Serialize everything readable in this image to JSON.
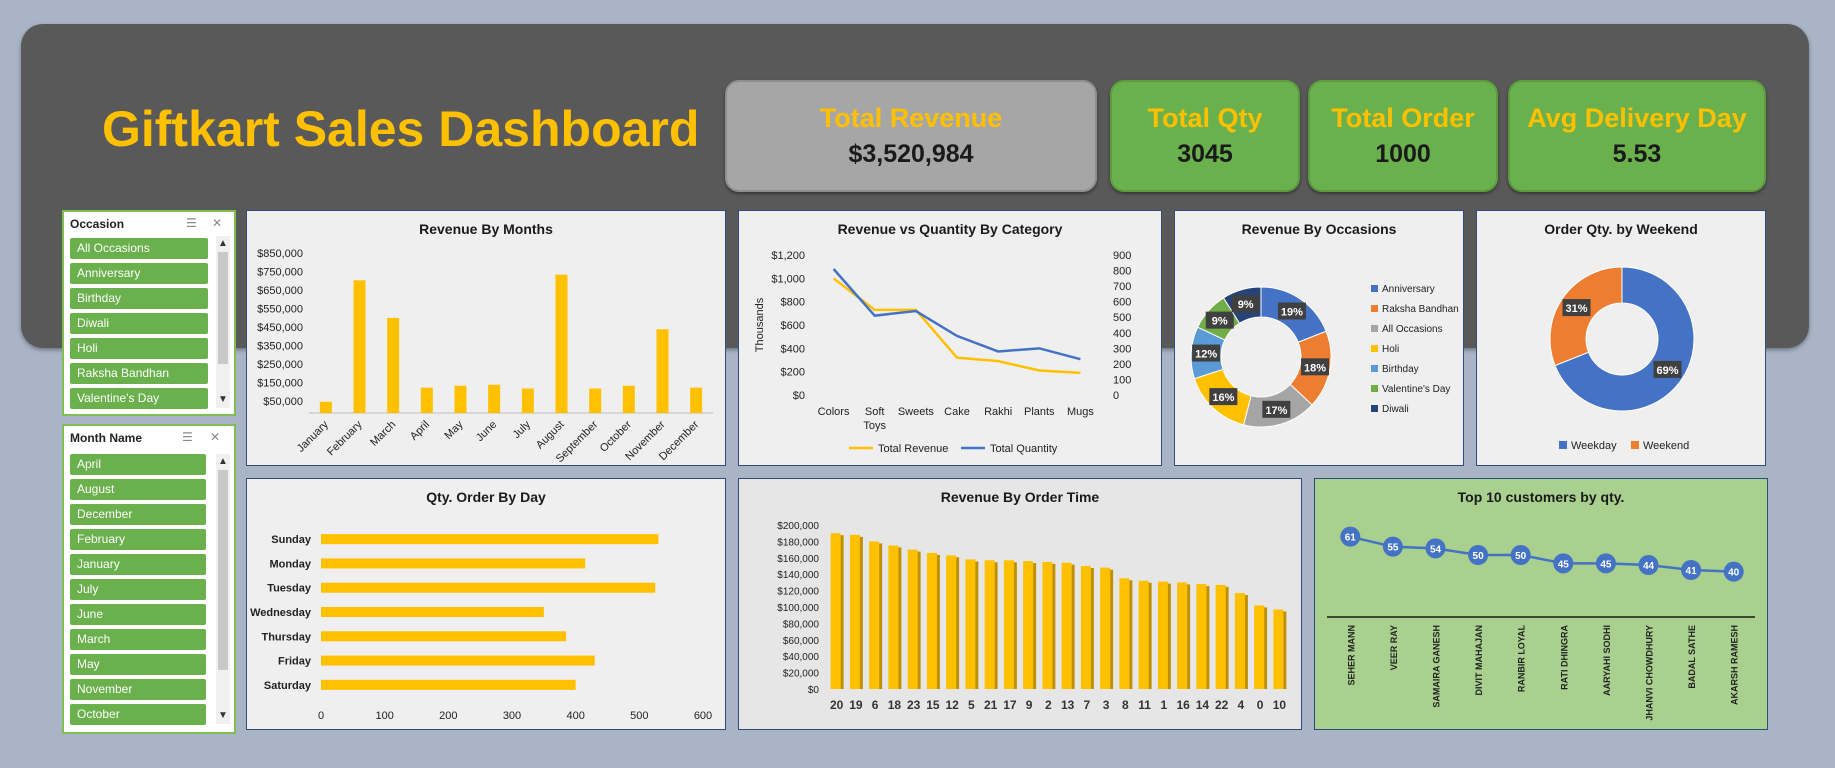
{
  "dashboard": {
    "title": "Giftkart Sales Dashboard",
    "kpis": [
      {
        "label": "Total Revenue",
        "value": "$3,520,984"
      },
      {
        "label": "Total Qty",
        "value": "3045"
      },
      {
        "label": "Total Order",
        "value": "1000"
      },
      {
        "label": "Avg Delivery Day",
        "value": "5.53"
      }
    ],
    "colors": {
      "accent": "#ffc000",
      "kpi_green": "#6ab04c",
      "header": "#595959",
      "blue": "#4472c4",
      "orange": "#ed7d31"
    }
  },
  "slicers": {
    "occasion": {
      "header": "Occasion",
      "items": [
        "All Occasions",
        "Anniversary",
        "Birthday",
        "Diwali",
        "Holi",
        "Raksha Bandhan",
        "Valentine's Day"
      ]
    },
    "month": {
      "header": "Month Name",
      "items": [
        "April",
        "August",
        "December",
        "February",
        "January",
        "July",
        "June",
        "March",
        "May",
        "November",
        "October"
      ]
    }
  },
  "chart_data": [
    {
      "id": "revenue-by-months",
      "type": "bar",
      "title": "Revenue By Months",
      "categories": [
        "January",
        "February",
        "March",
        "April",
        "May",
        "June",
        "July",
        "August",
        "September",
        "October",
        "November",
        "December"
      ],
      "values": [
        60000,
        705000,
        505000,
        135000,
        145000,
        150000,
        130000,
        735000,
        130000,
        145000,
        445000,
        135000
      ],
      "yticks": [
        "$50,000",
        "$150,000",
        "$250,000",
        "$350,000",
        "$450,000",
        "$550,000",
        "$650,000",
        "$750,000",
        "$850,000"
      ],
      "ylim": [
        0,
        850000
      ],
      "color": "#ffc000"
    },
    {
      "id": "revenue-vs-quantity",
      "type": "line",
      "title": "Revenue vs Quantity By Category",
      "categories": [
        "Colors",
        "Soft Toys",
        "Sweets",
        "Cake",
        "Rakhi",
        "Plants",
        "Mugs"
      ],
      "ylabel": "Thousands",
      "yticks_left": [
        "$0",
        "$200",
        "$400",
        "$600",
        "$800",
        "$1,000",
        "$1,200"
      ],
      "yticks_right": [
        "0",
        "100",
        "200",
        "300",
        "400",
        "500",
        "600",
        "700",
        "800",
        "900"
      ],
      "series": [
        {
          "name": "Total Revenue",
          "axis": "left",
          "color": "#ffc000",
          "values": [
            1000,
            730,
            730,
            320,
            290,
            210,
            190
          ]
        },
        {
          "name": "Total Quantity",
          "axis": "right",
          "color": "#4472c4",
          "values": [
            810,
            510,
            540,
            380,
            280,
            300,
            230
          ]
        }
      ]
    },
    {
      "id": "revenue-by-occasions",
      "type": "pie",
      "title": "Revenue By Occasions",
      "series": [
        {
          "name": "Anniversary",
          "value": 19,
          "label": "19%",
          "color": "#4472c4"
        },
        {
          "name": "Raksha Bandhan",
          "value": 18,
          "label": "18%",
          "color": "#ed7d31"
        },
        {
          "name": "All Occasions",
          "value": 17,
          "label": "17%",
          "color": "#a5a5a5"
        },
        {
          "name": "Holi",
          "value": 16,
          "label": "16%",
          "color": "#ffc000"
        },
        {
          "name": "Birthday",
          "value": 12,
          "label": "12%",
          "color": "#5b9bd5"
        },
        {
          "name": "Valentine's Day",
          "value": 9,
          "label": "9%",
          "color": "#70ad47"
        },
        {
          "name": "Diwali",
          "value": 9,
          "label": "9%",
          "color": "#264478"
        }
      ],
      "legend": "right"
    },
    {
      "id": "order-qty-by-weekend",
      "type": "pie",
      "title": "Order Qty. by Weekend",
      "series": [
        {
          "name": "Weekday",
          "value": 69,
          "label": "69%",
          "color": "#4472c4"
        },
        {
          "name": "Weekend",
          "value": 31,
          "label": "31%",
          "color": "#ed7d31"
        }
      ],
      "legend": "bottom"
    },
    {
      "id": "qty-order-by-day",
      "type": "bar",
      "orientation": "horizontal",
      "title": "Qty. Order By Day",
      "categories": [
        "Sunday",
        "Monday",
        "Tuesday",
        "Wednesday",
        "Thursday",
        "Friday",
        "Saturday"
      ],
      "values": [
        530,
        415,
        525,
        350,
        385,
        430,
        400
      ],
      "xticks": [
        "0",
        "100",
        "200",
        "300",
        "400",
        "500",
        "600"
      ],
      "xlim": [
        0,
        600
      ],
      "color": "#ffc000"
    },
    {
      "id": "revenue-by-order-time",
      "type": "bar",
      "title": "Revenue By Order Time",
      "categories": [
        "20",
        "19",
        "6",
        "18",
        "23",
        "15",
        "12",
        "5",
        "21",
        "17",
        "9",
        "2",
        "13",
        "7",
        "3",
        "8",
        "11",
        "1",
        "16",
        "14",
        "22",
        "4",
        "0",
        "10"
      ],
      "values": [
        190000,
        188000,
        180000,
        175000,
        170000,
        166000,
        163000,
        158000,
        157000,
        157000,
        156000,
        155000,
        154000,
        150000,
        148000,
        135000,
        132000,
        131000,
        130000,
        128000,
        127000,
        117000,
        102000,
        97000
      ],
      "yticks": [
        "$0",
        "$20,000",
        "$40,000",
        "$60,000",
        "$80,000",
        "$100,000",
        "$120,000",
        "$140,000",
        "$160,000",
        "$180,000",
        "$200,000"
      ],
      "ylim": [
        0,
        200000
      ],
      "color": "#ffc000"
    },
    {
      "id": "top-10-customers",
      "type": "line",
      "title": "Top 10 customers by qty.",
      "categories": [
        "SEHER MANN",
        "VEER RAY",
        "SAMAIRA GANESH",
        "DIVIT MAHAJAN",
        "RANBIR LOYAL",
        "RATI DHINGRA",
        "AARYAHI SODHI",
        "JHANVI CHOWDHURY",
        "BADAL SATHE",
        "AKARSH RAMESH"
      ],
      "values": [
        61,
        55,
        54,
        50,
        50,
        45,
        45,
        44,
        41,
        40
      ],
      "color": "#4472c4"
    }
  ]
}
